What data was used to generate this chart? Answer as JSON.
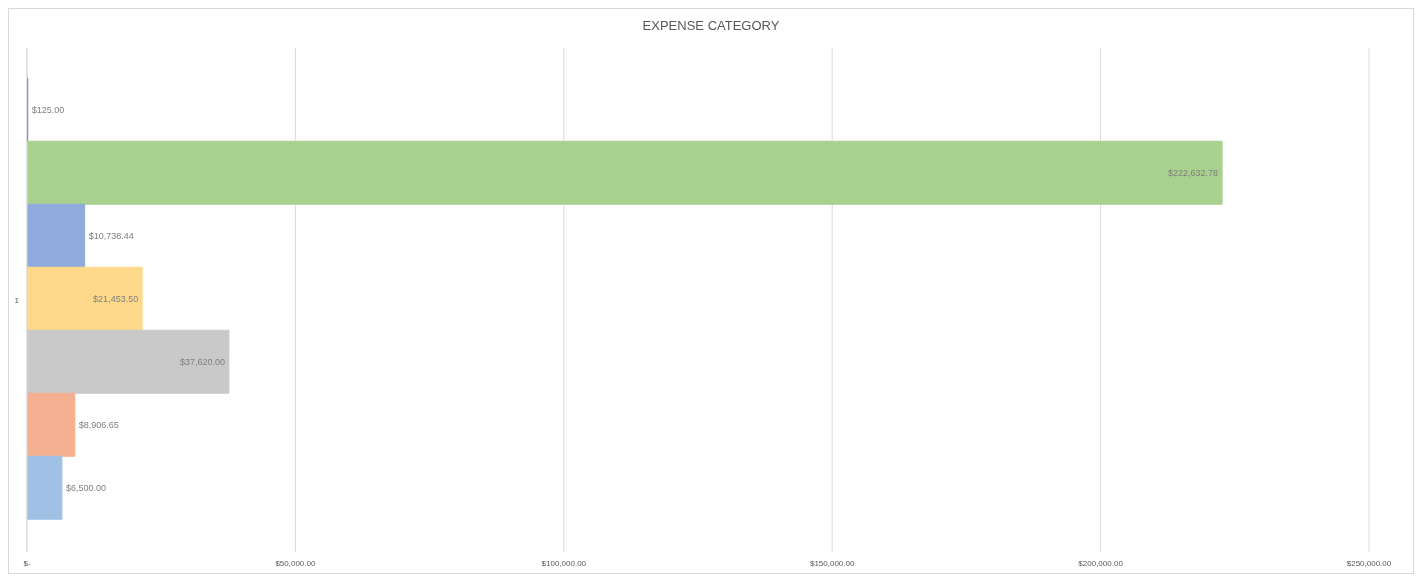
{
  "chart_data": {
    "type": "bar",
    "orientation": "horizontal",
    "title": "EXPENSE CATEGORY",
    "categories": [
      "1"
    ],
    "series": [
      {
        "color": "#2f5597",
        "values": [
          125.0
        ],
        "value_labels": [
          "$125.00"
        ]
      },
      {
        "color": "#a9d18e",
        "values": [
          222632.78
        ],
        "value_labels": [
          "$222,632.78"
        ]
      },
      {
        "color": "#8faadc",
        "values": [
          10738.44
        ],
        "value_labels": [
          "$10,738.44"
        ]
      },
      {
        "color": "#ffd98a",
        "values": [
          21453.5
        ],
        "value_labels": [
          "$21,453.50"
        ]
      },
      {
        "color": "#c9c9c9",
        "values": [
          37620.0
        ],
        "value_labels": [
          "$37,620.00"
        ]
      },
      {
        "color": "#f4b090",
        "values": [
          8906.65
        ],
        "value_labels": [
          "$8,906.65"
        ]
      },
      {
        "color": "#a0c0e6",
        "values": [
          6500.0
        ],
        "value_labels": [
          "$6,500.00"
        ]
      }
    ],
    "xlim": [
      0,
      250000
    ],
    "xticks": [
      {
        "value": 0,
        "label": "$-"
      },
      {
        "value": 50000,
        "label": "$50,000.00"
      },
      {
        "value": 100000,
        "label": "$100,000.00"
      },
      {
        "value": 150000,
        "label": "$150,000.00"
      },
      {
        "value": 200000,
        "label": "$200,000.00"
      },
      {
        "value": 250000,
        "label": "$250,000.00"
      }
    ],
    "grid": "x",
    "legend": false
  }
}
